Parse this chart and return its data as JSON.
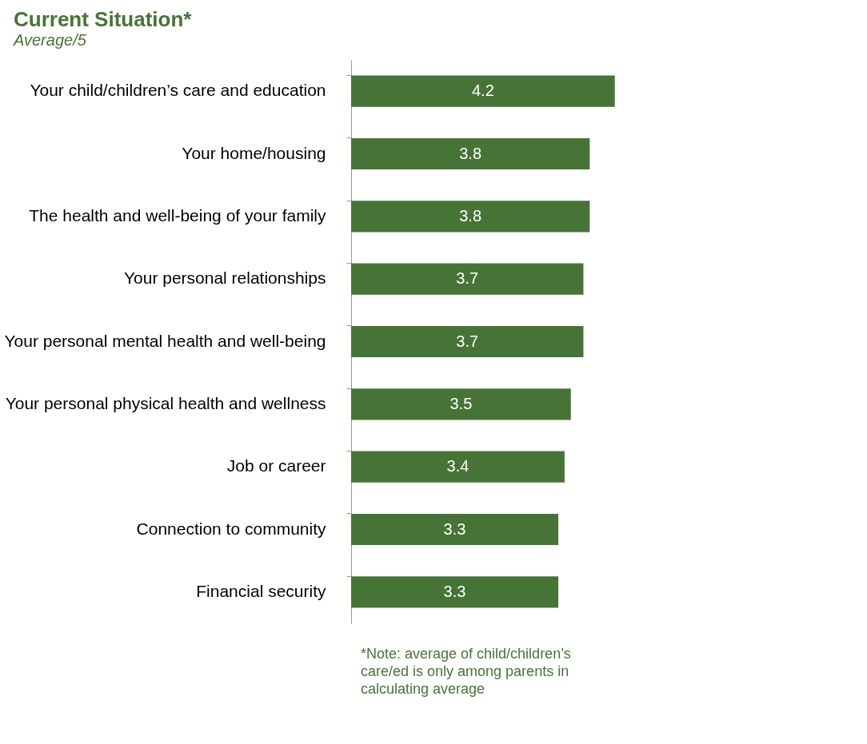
{
  "chart_data": {
    "type": "bar",
    "orientation": "horizontal",
    "title": "Current Situation*",
    "subtitle": "Average/5",
    "categories": [
      "Your child/children’s care and education",
      "Your home/housing",
      "The health and well-being of your family",
      "Your personal relationships",
      "Your personal mental health and well-being",
      "Your personal physical health and wellness",
      "Job or career",
      "Connection to community",
      "Financial security"
    ],
    "values": [
      4.2,
      3.8,
      3.8,
      3.7,
      3.7,
      3.5,
      3.4,
      3.3,
      3.3
    ],
    "color": "#467436",
    "data_labels": true,
    "grid": false,
    "tick_labels": "y",
    "annotations": [
      "*Note: average of child/children’s care/ed is only among parents in calculating average"
    ]
  }
}
